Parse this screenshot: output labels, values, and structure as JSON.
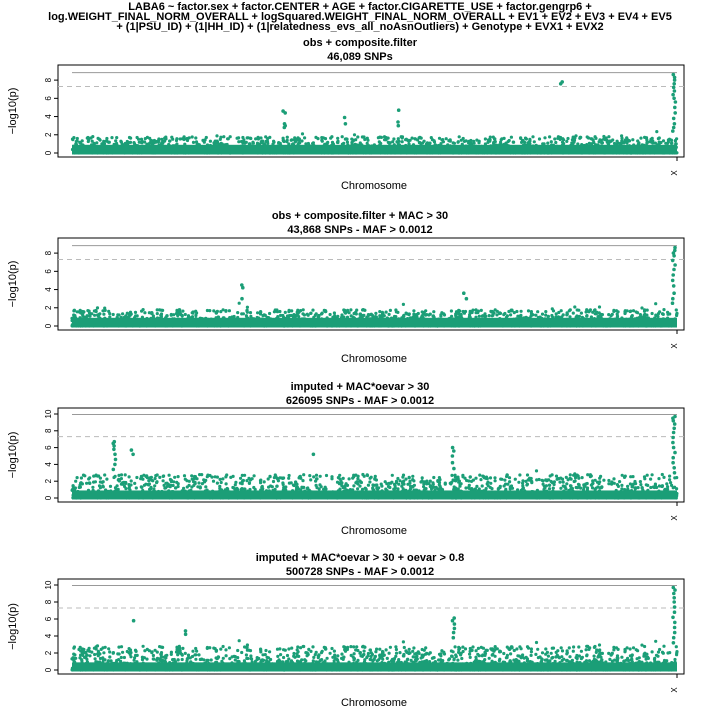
{
  "figure": {
    "title_lines": [
      "LABA6 ~ factor.sex + factor.CENTER + AGE + factor.CIGARETTE_USE + factor.gengrp6 +",
      "log.WEIGHT_FINAL_NORM_OVERALL + logSquared.WEIGHT_FINAL_NORM_OVERALL + EV1 + EV2 + EV3 + EV4 + EV5",
      "+ (1|PSU_ID) + (1|HH_ID) + (1|relatedness_evs_all_noAsnOutliers) + Genotype + EVX1 + EVX2"
    ]
  },
  "style": {
    "point_color": "#1b9e77",
    "threshold_color": "#bbbbbb",
    "top_line_color": "#999999"
  },
  "chart_data": [
    {
      "type": "scatter",
      "title": "obs + composite.filter",
      "subtitle": "46,089 SNPs",
      "xlabel": "Chromosome",
      "ylabel": "−log10(p)",
      "x_tick_labels": [
        "X"
      ],
      "y_ticks": [
        0,
        2,
        4,
        6,
        8
      ],
      "ylim": [
        0,
        9
      ],
      "genome_wide_threshold": 7.3,
      "max_neg_log10_p": 8.6,
      "background_max": 1.8,
      "peaks": [
        {
          "position": 0.35,
          "values": [
            4.6,
            4.4,
            3.2,
            3.0,
            2.8
          ]
        },
        {
          "position": 0.45,
          "values": [
            3.9,
            3.2
          ]
        },
        {
          "position": 0.54,
          "values": [
            4.7,
            3.4,
            3.0
          ]
        },
        {
          "position": 0.81,
          "values": [
            7.8,
            7.6
          ]
        },
        {
          "position": 0.995,
          "values": [
            8.6,
            8.3,
            8.0,
            7.6,
            7.2,
            6.8,
            6.4,
            6.0,
            5.6,
            5.0,
            4.4,
            3.8,
            3.2,
            2.8,
            2.4
          ]
        }
      ],
      "legend": "none",
      "grid": false
    },
    {
      "type": "scatter",
      "title": "obs + composite.filter + MAC > 30",
      "subtitle": "43,868 SNPs - MAF > 0.0012",
      "xlabel": "Chromosome",
      "ylabel": "−log10(p)",
      "x_tick_labels": [
        "X"
      ],
      "y_ticks": [
        0,
        2,
        4,
        6,
        8
      ],
      "ylim": [
        0,
        9
      ],
      "genome_wide_threshold": 7.3,
      "max_neg_log10_p": 8.6,
      "background_max": 1.8,
      "peaks": [
        {
          "position": 0.28,
          "values": [
            4.5,
            4.2,
            3.0
          ]
        },
        {
          "position": 0.65,
          "values": [
            3.6,
            3.0
          ]
        },
        {
          "position": 0.995,
          "values": [
            8.6,
            8.3,
            8.0,
            7.7,
            7.2,
            6.7,
            6.2,
            5.6,
            5.0,
            4.4,
            3.6,
            3.0,
            2.5
          ]
        }
      ],
      "legend": "none",
      "grid": false
    },
    {
      "type": "scatter",
      "title": "imputed + MAC*oevar > 30",
      "subtitle": "626095 SNPs - MAF > 0.0012",
      "xlabel": "Chromosome",
      "ylabel": "−log10(p)",
      "x_tick_labels": [
        "X"
      ],
      "y_ticks": [
        0,
        2,
        4,
        6,
        8,
        10
      ],
      "ylim": [
        0,
        10
      ],
      "genome_wide_threshold": 7.3,
      "max_neg_log10_p": 9.7,
      "background_max": 2.8,
      "peaks": [
        {
          "position": 0.07,
          "values": [
            6.7,
            6.5,
            6.2,
            5.8,
            5.2,
            4.6,
            4.0,
            3.4
          ]
        },
        {
          "position": 0.1,
          "values": [
            5.7,
            5.2
          ]
        },
        {
          "position": 0.4,
          "values": [
            5.2
          ]
        },
        {
          "position": 0.63,
          "values": [
            6.0,
            5.6,
            5.0,
            4.2,
            3.5
          ]
        },
        {
          "position": 0.995,
          "values": [
            9.7,
            9.5,
            9.2,
            8.8,
            8.3,
            7.8,
            7.2,
            6.6,
            6.0,
            5.4,
            4.8,
            4.2,
            3.6,
            3.0
          ]
        }
      ],
      "legend": "none",
      "grid": false
    },
    {
      "type": "scatter",
      "title": "imputed + MAC*oevar > 30 + oevar > 0.8",
      "subtitle": "500728 SNPs - MAF > 0.0012",
      "xlabel": "Chromosome",
      "ylabel": "−log10(p)",
      "x_tick_labels": [
        "X"
      ],
      "y_ticks": [
        0,
        2,
        4,
        6,
        8,
        10
      ],
      "ylim": [
        0,
        10
      ],
      "genome_wide_threshold": 7.3,
      "max_neg_log10_p": 9.7,
      "background_max": 2.8,
      "peaks": [
        {
          "position": 0.1,
          "values": [
            5.8
          ]
        },
        {
          "position": 0.19,
          "values": [
            4.6,
            4.2
          ]
        },
        {
          "position": 0.63,
          "values": [
            6.1,
            5.8,
            5.4,
            4.9,
            4.4,
            3.8
          ]
        },
        {
          "position": 0.995,
          "values": [
            9.7,
            9.4,
            9.0,
            8.5,
            8.0,
            7.4,
            6.8,
            6.2,
            5.6,
            5.0,
            4.4,
            3.8,
            3.2
          ]
        }
      ],
      "legend": "none",
      "grid": false
    }
  ]
}
